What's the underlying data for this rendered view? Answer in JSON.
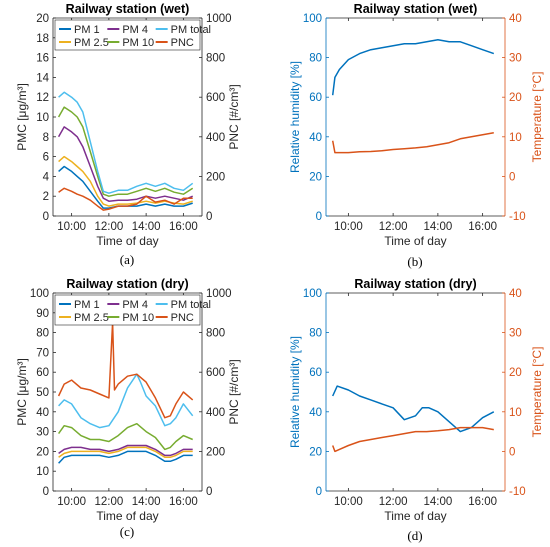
{
  "figure_labels": [
    "(a)",
    "(b)",
    "(c)",
    "(d)"
  ],
  "chart_data": [
    {
      "id": "a",
      "type": "line",
      "title": "Railway station (wet)",
      "xlabel": "Time of day",
      "ylabel_left": "PMC [μg/m³]",
      "ylabel_right": "PNC [#/cm³]",
      "x_ticks": [
        "10:00",
        "12:00",
        "14:00",
        "16:00"
      ],
      "x_tick_hours": [
        10,
        12,
        14,
        16
      ],
      "xlim": [
        9,
        17
      ],
      "ylim_left": [
        0,
        20
      ],
      "yticks_left": [
        0,
        2,
        4,
        6,
        8,
        10,
        12,
        14,
        16,
        18,
        20
      ],
      "ylim_right": [
        0,
        1000
      ],
      "yticks_right": [
        0,
        200,
        400,
        600,
        800,
        1000
      ],
      "legend_position": "top-left",
      "series": [
        {
          "name": "PM 1",
          "color": "#0072bd",
          "axis": "left",
          "x": [
            9.3,
            9.6,
            10.0,
            10.3,
            10.6,
            11.0,
            11.4,
            11.7,
            12.0,
            12.5,
            13.0,
            13.5,
            14.0,
            14.5,
            15.0,
            15.5,
            16.0,
            16.5
          ],
          "y": [
            4.5,
            5,
            4.5,
            4,
            3.5,
            2.5,
            1.5,
            0.8,
            0.8,
            1,
            1,
            1,
            1.2,
            1,
            1.2,
            1,
            1,
            1.3
          ]
        },
        {
          "name": "PM 2.5",
          "color": "#edb120",
          "axis": "left",
          "x": [
            9.3,
            9.6,
            10.0,
            10.3,
            10.6,
            11.0,
            11.4,
            11.7,
            12.0,
            12.5,
            13.0,
            13.5,
            14.0,
            14.5,
            15.0,
            15.5,
            16.0,
            16.5
          ],
          "y": [
            5.5,
            6,
            5.5,
            5,
            4.5,
            3.5,
            2,
            1.2,
            1,
            1.2,
            1.2,
            1.3,
            1.5,
            1.3,
            1.5,
            1.3,
            1.2,
            1.5
          ]
        },
        {
          "name": "PM 4",
          "color": "#7e2f8e",
          "axis": "left",
          "x": [
            9.3,
            9.6,
            10.0,
            10.3,
            10.6,
            11.0,
            11.4,
            11.7,
            12.0,
            12.5,
            13.0,
            13.5,
            14.0,
            14.5,
            15.0,
            15.5,
            16.0,
            16.5
          ],
          "y": [
            8,
            9,
            8.5,
            8,
            7,
            5,
            3,
            1.8,
            1.5,
            1.6,
            1.6,
            1.7,
            2,
            1.8,
            2,
            1.8,
            1.6,
            2
          ]
        },
        {
          "name": "PM 10",
          "color": "#77ac30",
          "axis": "left",
          "x": [
            9.3,
            9.6,
            10.0,
            10.3,
            10.6,
            11.0,
            11.4,
            11.7,
            12.0,
            12.5,
            13.0,
            13.5,
            14.0,
            14.5,
            15.0,
            15.5,
            16.0,
            16.5
          ],
          "y": [
            10,
            11,
            10.5,
            10,
            9,
            6.5,
            4,
            2.2,
            2,
            2.2,
            2.2,
            2.5,
            2.8,
            2.5,
            2.8,
            2.4,
            2.2,
            2.8
          ]
        },
        {
          "name": "PM total",
          "color": "#4dbeee",
          "axis": "left",
          "x": [
            9.3,
            9.6,
            10.0,
            10.3,
            10.6,
            11.0,
            11.4,
            11.7,
            12.0,
            12.5,
            13.0,
            13.5,
            14.0,
            14.5,
            15.0,
            15.5,
            16.0,
            16.5
          ],
          "y": [
            12,
            12.5,
            12,
            11.5,
            10.5,
            7.5,
            4.5,
            2.5,
            2.3,
            2.6,
            2.6,
            3,
            3.3,
            3,
            3.3,
            2.8,
            2.6,
            3.3
          ]
        },
        {
          "name": "PNC",
          "color": "#d95319",
          "axis": "right",
          "x": [
            9.3,
            9.6,
            10.0,
            10.3,
            10.6,
            11.0,
            11.4,
            11.7,
            12.0,
            12.5,
            13.0,
            13.5,
            14.0,
            14.5,
            15.0,
            15.5,
            16.0,
            16.5
          ],
          "y": [
            120,
            140,
            125,
            110,
            100,
            80,
            50,
            30,
            35,
            50,
            50,
            60,
            100,
            70,
            80,
            60,
            90,
            90
          ]
        }
      ]
    },
    {
      "id": "b",
      "type": "line",
      "title": "Railway station (wet)",
      "xlabel": "Time of day",
      "ylabel_left": "Relative humidity [%]",
      "ylabel_right": "Temperature [°C]",
      "x_ticks": [
        "10:00",
        "12:00",
        "14:00",
        "16:00"
      ],
      "x_tick_hours": [
        10,
        12,
        14,
        16
      ],
      "xlim": [
        9,
        17
      ],
      "ylim_left": [
        0,
        100
      ],
      "yticks_left": [
        0,
        20,
        40,
        60,
        80,
        100
      ],
      "ylim_right": [
        -10,
        40
      ],
      "yticks_right": [
        -10,
        0,
        10,
        20,
        30,
        40
      ],
      "left_color": "#0072bd",
      "right_color": "#d95319",
      "series": [
        {
          "name": "",
          "color": "#0072bd",
          "axis": "left",
          "x": [
            9.3,
            9.4,
            9.6,
            10.0,
            10.5,
            11.0,
            11.5,
            12.0,
            12.5,
            13.0,
            13.5,
            14.0,
            14.5,
            15.0,
            15.5,
            16.0,
            16.5
          ],
          "y": [
            61,
            70,
            74,
            79,
            82,
            84,
            85,
            86,
            87,
            87,
            88,
            89,
            88,
            88,
            86,
            84,
            82
          ]
        },
        {
          "name": "",
          "color": "#d95319",
          "axis": "right",
          "x": [
            9.3,
            9.4,
            9.6,
            10.0,
            10.5,
            11.0,
            11.5,
            12.0,
            12.5,
            13.0,
            13.5,
            14.0,
            14.5,
            15.0,
            15.5,
            16.0,
            16.5
          ],
          "y": [
            9,
            6,
            6,
            6,
            6.2,
            6.3,
            6.5,
            6.8,
            7,
            7.2,
            7.5,
            8,
            8.5,
            9.5,
            10,
            10.5,
            11
          ]
        }
      ]
    },
    {
      "id": "c",
      "type": "line",
      "title": "Railway station (dry)",
      "xlabel": "Time of day",
      "ylabel_left": "PMC [μg/m³]",
      "ylabel_right": "PNC [#/cm³]",
      "x_ticks": [
        "10:00",
        "12:00",
        "14:00",
        "16:00"
      ],
      "x_tick_hours": [
        10,
        12,
        14,
        16
      ],
      "xlim": [
        9,
        17
      ],
      "ylim_left": [
        0,
        100
      ],
      "yticks_left": [
        0,
        10,
        20,
        30,
        40,
        50,
        60,
        70,
        80,
        90,
        100
      ],
      "ylim_right": [
        0,
        1000
      ],
      "yticks_right": [
        0,
        200,
        400,
        600,
        800,
        1000
      ],
      "legend_position": "top",
      "series": [
        {
          "name": "PM 1",
          "color": "#0072bd",
          "axis": "left",
          "x": [
            9.3,
            9.6,
            10.0,
            10.5,
            11.0,
            11.5,
            12.0,
            12.5,
            13.0,
            13.5,
            14.0,
            14.5,
            15.0,
            15.3,
            15.6,
            16.0,
            16.5
          ],
          "y": [
            14,
            17,
            18,
            18,
            18,
            18,
            17,
            18,
            20,
            20,
            20,
            18,
            15,
            15,
            16,
            18,
            18
          ]
        },
        {
          "name": "PM 2.5",
          "color": "#edb120",
          "axis": "left",
          "x": [
            9.3,
            9.6,
            10.0,
            10.5,
            11.0,
            11.5,
            12.0,
            12.5,
            13.0,
            13.5,
            14.0,
            14.5,
            15.0,
            15.3,
            15.6,
            16.0,
            16.5
          ],
          "y": [
            17,
            19,
            20,
            20,
            20,
            20,
            19,
            20,
            22,
            22,
            22,
            20,
            17,
            17,
            18,
            20,
            20
          ]
        },
        {
          "name": "PM 4",
          "color": "#7e2f8e",
          "axis": "left",
          "x": [
            9.3,
            9.6,
            10.0,
            10.5,
            11.0,
            11.5,
            12.0,
            12.5,
            13.0,
            13.5,
            14.0,
            14.5,
            15.0,
            15.3,
            15.6,
            16.0,
            16.5
          ],
          "y": [
            19,
            21,
            22,
            22,
            21,
            21,
            20,
            21,
            23,
            23,
            23,
            21,
            18,
            18,
            19,
            21,
            21
          ]
        },
        {
          "name": "PM 10",
          "color": "#77ac30",
          "axis": "left",
          "x": [
            9.3,
            9.6,
            10.0,
            10.5,
            11.0,
            11.5,
            12.0,
            12.5,
            13.0,
            13.5,
            14.0,
            14.5,
            15.0,
            15.3,
            15.6,
            16.0,
            16.5
          ],
          "y": [
            29,
            33,
            32,
            28,
            26,
            26,
            25,
            28,
            32,
            34,
            30,
            27,
            21,
            22,
            25,
            28,
            26
          ]
        },
        {
          "name": "PM total",
          "color": "#4dbeee",
          "axis": "left",
          "x": [
            9.3,
            9.6,
            10.0,
            10.5,
            11.0,
            11.5,
            12.0,
            12.5,
            13.0,
            13.5,
            13.7,
            14.0,
            14.5,
            15.0,
            15.3,
            15.6,
            16.0,
            16.5
          ],
          "y": [
            43,
            46,
            44,
            37,
            34,
            32,
            33,
            40,
            52,
            59,
            55,
            48,
            43,
            33,
            34,
            37,
            44,
            38
          ]
        },
        {
          "name": "PNC",
          "color": "#d95319",
          "axis": "right",
          "x": [
            9.3,
            9.6,
            10.0,
            10.5,
            11.0,
            11.5,
            12.0,
            12.2,
            12.3,
            12.5,
            13.0,
            13.5,
            14.0,
            14.5,
            15.0,
            15.3,
            15.6,
            16.0,
            16.5
          ],
          "y": [
            480,
            540,
            560,
            520,
            510,
            490,
            470,
            850,
            510,
            540,
            580,
            590,
            550,
            470,
            370,
            380,
            440,
            500,
            460
          ]
        }
      ]
    },
    {
      "id": "d",
      "type": "line",
      "title": "Railway station (dry)",
      "xlabel": "Time of day",
      "ylabel_left": "Relative humidity [%]",
      "ylabel_right": "Temperature [°C]",
      "x_ticks": [
        "10:00",
        "12:00",
        "14:00",
        "16:00"
      ],
      "x_tick_hours": [
        10,
        12,
        14,
        16
      ],
      "xlim": [
        9,
        17
      ],
      "ylim_left": [
        0,
        100
      ],
      "yticks_left": [
        0,
        20,
        40,
        60,
        80,
        100
      ],
      "ylim_right": [
        -10,
        40
      ],
      "yticks_right": [
        -10,
        0,
        10,
        20,
        30,
        40
      ],
      "left_color": "#0072bd",
      "right_color": "#d95319",
      "series": [
        {
          "name": "",
          "color": "#0072bd",
          "axis": "left",
          "x": [
            9.3,
            9.5,
            10.0,
            10.5,
            11.0,
            11.5,
            12.0,
            12.5,
            13.0,
            13.3,
            13.6,
            14.0,
            14.5,
            15.0,
            15.5,
            16.0,
            16.5
          ],
          "y": [
            48,
            53,
            51,
            48,
            46,
            44,
            42,
            36,
            38,
            42,
            42,
            40,
            35,
            30,
            32,
            37,
            40
          ]
        },
        {
          "name": "",
          "color": "#d95319",
          "axis": "right",
          "x": [
            9.3,
            9.4,
            9.6,
            10.0,
            10.5,
            11.0,
            11.5,
            12.0,
            12.5,
            13.0,
            13.5,
            14.0,
            14.5,
            15.0,
            15.5,
            16.0,
            16.5
          ],
          "y": [
            1.5,
            0,
            0.5,
            1.5,
            2.5,
            3,
            3.5,
            4,
            4.5,
            5,
            5,
            5.2,
            5.5,
            6,
            6,
            6,
            5.5
          ]
        }
      ]
    }
  ]
}
